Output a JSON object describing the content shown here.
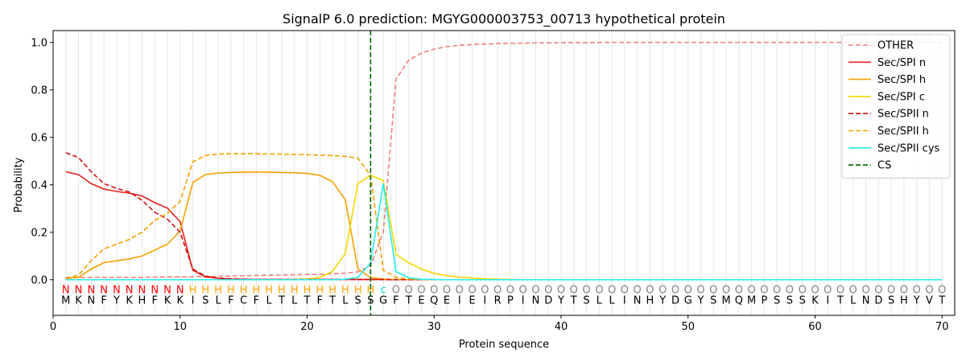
{
  "chart_data": {
    "type": "line",
    "title": "SignalP 6.0 prediction: MGYG000003753_00713 hypothetical protein",
    "xlabel": "Protein sequence",
    "ylabel": "Probability",
    "xlim": [
      0,
      71
    ],
    "ylim": [
      -0.15,
      1.05
    ],
    "xticks": [
      0,
      10,
      20,
      30,
      40,
      50,
      60,
      70
    ],
    "yticks": [
      0.0,
      0.2,
      0.4,
      0.6,
      0.8,
      1.0
    ],
    "ytick_labels": [
      "0.0",
      "0.2",
      "0.4",
      "0.6",
      "0.8",
      "1.0"
    ],
    "grid": "vertical lines at every residue",
    "legend_position": "top-right",
    "cleavage_site": 25,
    "sequence": [
      "M",
      "K",
      "N",
      "F",
      "Y",
      "K",
      "H",
      "F",
      "K",
      "K",
      "I",
      "S",
      "L",
      "F",
      "C",
      "F",
      "L",
      "T",
      "L",
      "T",
      "F",
      "T",
      "L",
      "S",
      "S",
      "G",
      "F",
      "T",
      "E",
      "Q",
      "E",
      "I",
      "E",
      "I",
      "R",
      "P",
      "I",
      "N",
      "D",
      "Y",
      "T",
      "S",
      "L",
      "L",
      "I",
      "N",
      "H",
      "Y",
      "D",
      "G",
      "Y",
      "S",
      "M",
      "Q",
      "M",
      "P",
      "S",
      "S",
      "S",
      "K",
      "I",
      "T",
      "L",
      "N",
      "D",
      "S",
      "H",
      "Y",
      "V",
      "T"
    ],
    "labels": [
      "N",
      "N",
      "N",
      "N",
      "N",
      "N",
      "N",
      "N",
      "N",
      "N",
      "H",
      "H",
      "H",
      "H",
      "H",
      "H",
      "H",
      "H",
      "H",
      "H",
      "H",
      "H",
      "H",
      "H",
      "H",
      "c",
      "O",
      "O",
      "O",
      "O",
      "O",
      "O",
      "O",
      "O",
      "O",
      "O",
      "O",
      "O",
      "O",
      "O",
      "O",
      "O",
      "O",
      "O",
      "O",
      "O",
      "O",
      "O",
      "O",
      "O",
      "O",
      "O",
      "O",
      "O",
      "O",
      "O",
      "O",
      "O",
      "O",
      "O",
      "O",
      "O",
      "O",
      "O",
      "O",
      "O",
      "O",
      "O",
      "O",
      "O"
    ],
    "label_colors": {
      "N": "#ff0000",
      "H": "#ffa500",
      "c": "#00dddd",
      "O": "#808080"
    },
    "series": [
      {
        "name": "OTHER",
        "color": "#f08080",
        "dash": true,
        "values": [
          0.01,
          0.01,
          0.01,
          0.01,
          0.01,
          0.01,
          0.01,
          0.011,
          0.012,
          0.012,
          0.013,
          0.014,
          0.015,
          0.016,
          0.017,
          0.018,
          0.019,
          0.02,
          0.021,
          0.022,
          0.023,
          0.025,
          0.028,
          0.033,
          0.06,
          0.2,
          0.845,
          0.925,
          0.955,
          0.972,
          0.982,
          0.988,
          0.991,
          0.993,
          0.995,
          0.996,
          0.997,
          0.998,
          0.998,
          0.999,
          0.999,
          0.999,
          1.0,
          1.0,
          1.0,
          1.0,
          1.0,
          1.0,
          1.0,
          1.0,
          1.0,
          1.0,
          1.0,
          1.0,
          1.0,
          1.0,
          1.0,
          1.0,
          1.0,
          1.0,
          1.0,
          1.0,
          1.0,
          1.0,
          1.0,
          1.0,
          1.0,
          1.0,
          1.0,
          1.0
        ]
      },
      {
        "name": "Sec/SPI n",
        "color": "#e8201a",
        "dash": false,
        "values": [
          0.455,
          0.443,
          0.405,
          0.382,
          0.372,
          0.365,
          0.353,
          0.325,
          0.302,
          0.245,
          0.04,
          0.012,
          0.006,
          0.003,
          0.002,
          0.001,
          0.001,
          0.001,
          0.001,
          0.001,
          0.001,
          0.001,
          0.001,
          0.001,
          0.001,
          0.001,
          0.0,
          0.0,
          0.0,
          0.0,
          0.0,
          0.0,
          0.0,
          0.0,
          0.0,
          0.0,
          0.0,
          0.0,
          0.0,
          0.0,
          0.0,
          0.0,
          0.0,
          0.0,
          0.0,
          0.0,
          0.0,
          0.0,
          0.0,
          0.0,
          0.0,
          0.0,
          0.0,
          0.0,
          0.0,
          0.0,
          0.0,
          0.0,
          0.0,
          0.0,
          0.0,
          0.0,
          0.0,
          0.0,
          0.0,
          0.0,
          0.0,
          0.0,
          0.0,
          0.0
        ]
      },
      {
        "name": "Sec/SPI h",
        "color": "#f5a000",
        "dash": false,
        "values": [
          0.005,
          0.01,
          0.045,
          0.072,
          0.08,
          0.088,
          0.1,
          0.125,
          0.15,
          0.205,
          0.41,
          0.443,
          0.45,
          0.452,
          0.453,
          0.453,
          0.453,
          0.452,
          0.451,
          0.448,
          0.44,
          0.413,
          0.338,
          0.045,
          0.01,
          0.003,
          0.001,
          0.0,
          0.0,
          0.0,
          0.0,
          0.0,
          0.0,
          0.0,
          0.0,
          0.0,
          0.0,
          0.0,
          0.0,
          0.0,
          0.0,
          0.0,
          0.0,
          0.0,
          0.0,
          0.0,
          0.0,
          0.0,
          0.0,
          0.0,
          0.0,
          0.0,
          0.0,
          0.0,
          0.0,
          0.0,
          0.0,
          0.0,
          0.0,
          0.0,
          0.0,
          0.0,
          0.0,
          0.0,
          0.0,
          0.0,
          0.0,
          0.0,
          0.0,
          0.0
        ]
      },
      {
        "name": "Sec/SPI c",
        "color": "#f5d800",
        "dash": false,
        "values": [
          0.0,
          0.0,
          0.0,
          0.0,
          0.0,
          0.0,
          0.0,
          0.0,
          0.0,
          0.0,
          0.0,
          0.0,
          0.0,
          0.0,
          0.0,
          0.0,
          0.0,
          0.0,
          0.001,
          0.003,
          0.01,
          0.035,
          0.11,
          0.405,
          0.44,
          0.418,
          0.107,
          0.072,
          0.045,
          0.027,
          0.017,
          0.011,
          0.007,
          0.004,
          0.002,
          0.001,
          0.0,
          0.0,
          0.0,
          0.0,
          0.0,
          0.0,
          0.0,
          0.0,
          0.0,
          0.0,
          0.0,
          0.0,
          0.0,
          0.0,
          0.0,
          0.0,
          0.0,
          0.0,
          0.0,
          0.0,
          0.0,
          0.0,
          0.0,
          0.0,
          0.0,
          0.0,
          0.0,
          0.0,
          0.0,
          0.0,
          0.0,
          0.0,
          0.0,
          0.0
        ]
      },
      {
        "name": "Sec/SPII n",
        "color": "#d41010",
        "dash": true,
        "values": [
          0.535,
          0.515,
          0.455,
          0.405,
          0.385,
          0.37,
          0.335,
          0.285,
          0.255,
          0.2,
          0.045,
          0.015,
          0.007,
          0.004,
          0.002,
          0.001,
          0.001,
          0.001,
          0.001,
          0.001,
          0.001,
          0.001,
          0.001,
          0.001,
          0.001,
          0.001,
          0.0,
          0.0,
          0.0,
          0.0,
          0.0,
          0.0,
          0.0,
          0.0,
          0.0,
          0.0,
          0.0,
          0.0,
          0.0,
          0.0,
          0.0,
          0.0,
          0.0,
          0.0,
          0.0,
          0.0,
          0.0,
          0.0,
          0.0,
          0.0,
          0.0,
          0.0,
          0.0,
          0.0,
          0.0,
          0.0,
          0.0,
          0.0,
          0.0,
          0.0,
          0.0,
          0.0,
          0.0,
          0.0,
          0.0,
          0.0,
          0.0,
          0.0,
          0.0,
          0.0
        ]
      },
      {
        "name": "Sec/SPII h",
        "color": "#f5a000",
        "dash": true,
        "values": [
          0.005,
          0.02,
          0.08,
          0.13,
          0.15,
          0.17,
          0.2,
          0.25,
          0.28,
          0.33,
          0.497,
          0.523,
          0.53,
          0.531,
          0.531,
          0.531,
          0.53,
          0.529,
          0.528,
          0.527,
          0.525,
          0.523,
          0.52,
          0.512,
          0.44,
          0.04,
          0.01,
          0.003,
          0.001,
          0.0,
          0.0,
          0.0,
          0.0,
          0.0,
          0.0,
          0.0,
          0.0,
          0.0,
          0.0,
          0.0,
          0.0,
          0.0,
          0.0,
          0.0,
          0.0,
          0.0,
          0.0,
          0.0,
          0.0,
          0.0,
          0.0,
          0.0,
          0.0,
          0.0,
          0.0,
          0.0,
          0.0,
          0.0,
          0.0,
          0.0,
          0.0,
          0.0,
          0.0,
          0.0,
          0.0,
          0.0,
          0.0,
          0.0,
          0.0,
          0.0
        ]
      },
      {
        "name": "Sec/SPII cys",
        "color": "#22eeee",
        "dash": false,
        "values": [
          0.0,
          0.0,
          0.0,
          0.0,
          0.0,
          0.0,
          0.0,
          0.0,
          0.0,
          0.0,
          0.0,
          0.0,
          0.0,
          0.0,
          0.0,
          0.0,
          0.0,
          0.0,
          0.0,
          0.0,
          0.0,
          0.0,
          0.002,
          0.01,
          0.07,
          0.405,
          0.035,
          0.008,
          0.002,
          0.001,
          0.0,
          0.0,
          0.0,
          0.0,
          0.0,
          0.0,
          0.0,
          0.0,
          0.0,
          0.0,
          0.0,
          0.0,
          0.0,
          0.0,
          0.0,
          0.0,
          0.0,
          0.0,
          0.0,
          0.0,
          0.0,
          0.0,
          0.0,
          0.0,
          0.0,
          0.0,
          0.0,
          0.0,
          0.0,
          0.0,
          0.0,
          0.0,
          0.0,
          0.0,
          0.0,
          0.0,
          0.0,
          0.0,
          0.0,
          0.0
        ]
      }
    ],
    "legend_entries": [
      {
        "name": "OTHER",
        "color": "#f08080",
        "dash": true
      },
      {
        "name": "Sec/SPI n",
        "color": "#e8201a",
        "dash": false
      },
      {
        "name": "Sec/SPI h",
        "color": "#f5a000",
        "dash": false
      },
      {
        "name": "Sec/SPI c",
        "color": "#f5d800",
        "dash": false
      },
      {
        "name": "Sec/SPII n",
        "color": "#d41010",
        "dash": true
      },
      {
        "name": "Sec/SPII h",
        "color": "#f5a000",
        "dash": true
      },
      {
        "name": "Sec/SPII cys",
        "color": "#22eeee",
        "dash": false
      },
      {
        "name": "CS",
        "color": "#006400",
        "dash": true
      }
    ]
  }
}
